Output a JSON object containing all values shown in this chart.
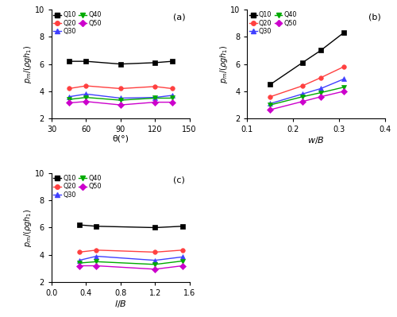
{
  "subplot_a": {
    "label": "(a)",
    "xlabel": "θ(°)",
    "ylabel": "$p_m/(\\rho g h_1)$",
    "xlim": [
      30,
      150
    ],
    "ylim": [
      2,
      10
    ],
    "xticks": [
      30,
      60,
      90,
      120,
      150
    ],
    "yticks": [
      2,
      4,
      6,
      8,
      10
    ],
    "series": {
      "Q10": {
        "x": [
          45,
          60,
          90,
          120,
          135
        ],
        "y": [
          6.2,
          6.2,
          6.0,
          6.1,
          6.2
        ],
        "color": "#000000",
        "marker": "s"
      },
      "Q20": {
        "x": [
          45,
          60,
          90,
          120,
          135
        ],
        "y": [
          4.2,
          4.4,
          4.2,
          4.35,
          4.2
        ],
        "color": "#ff4040",
        "marker": "o"
      },
      "Q30": {
        "x": [
          45,
          60,
          90,
          120,
          135
        ],
        "y": [
          3.6,
          3.8,
          3.5,
          3.55,
          3.7
        ],
        "color": "#4040ff",
        "marker": "^"
      },
      "Q40": {
        "x": [
          45,
          60,
          90,
          120,
          135
        ],
        "y": [
          3.4,
          3.55,
          3.35,
          3.5,
          3.5
        ],
        "color": "#00aa00",
        "marker": "v"
      },
      "Q50": {
        "x": [
          45,
          60,
          90,
          120,
          135
        ],
        "y": [
          3.15,
          3.25,
          3.0,
          3.2,
          3.2
        ],
        "color": "#cc00cc",
        "marker": "D"
      }
    }
  },
  "subplot_b": {
    "label": "(b)",
    "xlabel": "$w/B$",
    "ylabel": "$p_m/(\\rho g h_1)$",
    "xlim": [
      0.1,
      0.4
    ],
    "ylim": [
      2,
      10
    ],
    "xticks": [
      0.1,
      0.2,
      0.3,
      0.4
    ],
    "yticks": [
      2,
      4,
      6,
      8,
      10
    ],
    "series": {
      "Q10": {
        "x": [
          0.15,
          0.22,
          0.26,
          0.31
        ],
        "y": [
          4.5,
          6.1,
          7.0,
          8.3
        ],
        "color": "#000000",
        "marker": "s"
      },
      "Q20": {
        "x": [
          0.15,
          0.22,
          0.26,
          0.31
        ],
        "y": [
          3.6,
          4.4,
          5.0,
          5.8
        ],
        "color": "#ff4040",
        "marker": "o"
      },
      "Q30": {
        "x": [
          0.15,
          0.22,
          0.26,
          0.31
        ],
        "y": [
          3.1,
          3.8,
          4.2,
          4.9
        ],
        "color": "#4040ff",
        "marker": "^"
      },
      "Q40": {
        "x": [
          0.15,
          0.22,
          0.26,
          0.31
        ],
        "y": [
          3.0,
          3.6,
          3.9,
          4.3
        ],
        "color": "#00aa00",
        "marker": "v"
      },
      "Q50": {
        "x": [
          0.15,
          0.22,
          0.26,
          0.31
        ],
        "y": [
          2.65,
          3.25,
          3.6,
          4.0
        ],
        "color": "#cc00cc",
        "marker": "D"
      }
    }
  },
  "subplot_c": {
    "label": "(c)",
    "xlabel": "$l/B$",
    "ylabel": "$p_m/(\\rho g h_1)$",
    "xlim": [
      0.0,
      1.6
    ],
    "ylim": [
      2,
      10
    ],
    "xticks": [
      0.0,
      0.4,
      0.8,
      1.2,
      1.6
    ],
    "yticks": [
      2,
      4,
      6,
      8,
      10
    ],
    "series": {
      "Q10": {
        "x": [
          0.32,
          0.52,
          1.2,
          1.52
        ],
        "y": [
          6.2,
          6.1,
          6.0,
          6.1
        ],
        "color": "#000000",
        "marker": "s"
      },
      "Q20": {
        "x": [
          0.32,
          0.52,
          1.2,
          1.52
        ],
        "y": [
          4.2,
          4.35,
          4.2,
          4.35
        ],
        "color": "#ff4040",
        "marker": "o"
      },
      "Q30": {
        "x": [
          0.32,
          0.52,
          1.2,
          1.52
        ],
        "y": [
          3.6,
          3.9,
          3.6,
          3.85
        ],
        "color": "#4040ff",
        "marker": "^"
      },
      "Q40": {
        "x": [
          0.32,
          0.52,
          1.2,
          1.52
        ],
        "y": [
          3.4,
          3.5,
          3.3,
          3.55
        ],
        "color": "#00aa00",
        "marker": "v"
      },
      "Q50": {
        "x": [
          0.32,
          0.52,
          1.2,
          1.52
        ],
        "y": [
          3.2,
          3.2,
          2.95,
          3.2
        ],
        "color": "#cc00cc",
        "marker": "D"
      }
    }
  },
  "series_order": [
    "Q10",
    "Q20",
    "Q30",
    "Q40",
    "Q50"
  ],
  "legend_colors": [
    "#000000",
    "#ff4040",
    "#4040ff",
    "#00aa00",
    "#cc00cc"
  ],
  "legend_markers": [
    "s",
    "o",
    "^",
    "v",
    "D"
  ],
  "label_fontsize": 8,
  "tick_fontsize": 7,
  "ylabel_fontsize": 7,
  "xlabel_fontsize": 8,
  "marker_size": 4,
  "line_width": 1.0
}
